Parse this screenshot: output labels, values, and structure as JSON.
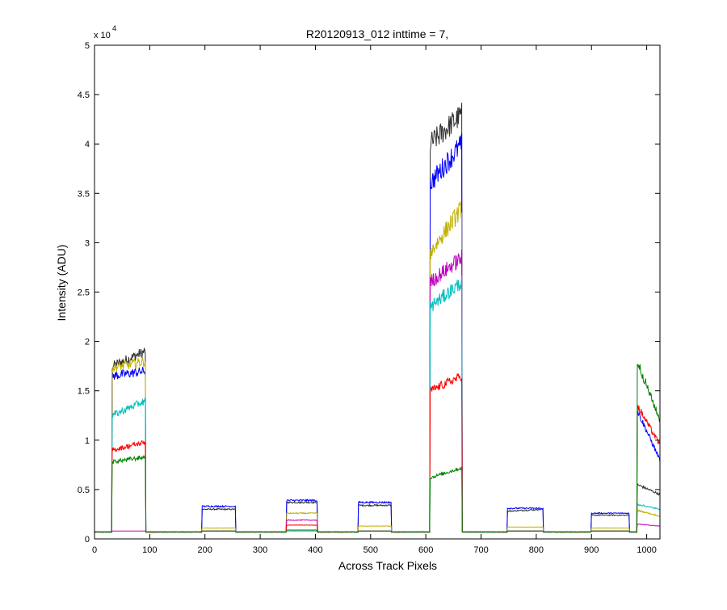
{
  "chart_data": {
    "type": "line",
    "title": "R20120913_012 inttime = 7,",
    "xlabel": "Across Track Pixels",
    "ylabel": "Intensity (ADU)",
    "y_exponent_label": "x 10",
    "y_exponent": "4",
    "xlim": [
      0,
      1024
    ],
    "ylim": [
      0,
      50000
    ],
    "xticks": [
      0,
      100,
      200,
      300,
      400,
      500,
      600,
      700,
      800,
      900,
      1000
    ],
    "yticks": [
      0,
      5000,
      10000,
      15000,
      20000,
      25000,
      30000,
      35000,
      40000,
      45000,
      50000
    ],
    "xtick_labels": [
      "0",
      "100",
      "200",
      "300",
      "400",
      "500",
      "600",
      "700",
      "800",
      "900",
      "1000"
    ],
    "ytick_labels": [
      "0",
      "0.5",
      "1",
      "1.5",
      "2",
      "2.5",
      "3",
      "3.5",
      "4",
      "4.5",
      "5"
    ],
    "grid": false,
    "legend": "none",
    "baseline": 700,
    "segments": [
      {
        "x0": 32,
        "x1": 92
      },
      {
        "x0": 195,
        "x1": 255
      },
      {
        "x0": 348,
        "x1": 403
      },
      {
        "x0": 478,
        "x1": 537
      },
      {
        "x0": 608,
        "x1": 665
      },
      {
        "x0": 748,
        "x1": 812
      },
      {
        "x0": 900,
        "x1": 968
      },
      {
        "x0": 983,
        "x1": 1024
      }
    ],
    "series": [
      {
        "color": "#303030",
        "levels": [
          {
            "start": 17500,
            "end": 19000
          },
          {
            "start": 3000,
            "end": 3000
          },
          {
            "start": 3700,
            "end": 3700
          },
          {
            "start": 3400,
            "end": 3400
          },
          {
            "start": 40000,
            "end": 43000
          },
          {
            "start": 2800,
            "end": 3000
          },
          {
            "start": 2400,
            "end": 2400
          },
          {
            "start": 5500,
            "end": 4500
          }
        ]
      },
      {
        "color": "#0000ff",
        "levels": [
          {
            "start": 16500,
            "end": 17000
          },
          {
            "start": 3300,
            "end": 3300
          },
          {
            "start": 3900,
            "end": 3900
          },
          {
            "start": 3700,
            "end": 3700
          },
          {
            "start": 36000,
            "end": 40000
          },
          {
            "start": 3100,
            "end": 3100
          },
          {
            "start": 2600,
            "end": 2600
          },
          {
            "start": 13000,
            "end": 8000
          }
        ]
      },
      {
        "color": "#c0b000",
        "levels": [
          {
            "start": 17300,
            "end": 18000
          },
          {
            "start": 1100,
            "end": 1100
          },
          {
            "start": 2600,
            "end": 2600
          },
          {
            "start": 1300,
            "end": 1300
          },
          {
            "start": 29000,
            "end": 33500
          },
          {
            "start": 1200,
            "end": 1200
          },
          {
            "start": 1100,
            "end": 1100
          },
          {
            "start": 2900,
            "end": 2300
          }
        ]
      },
      {
        "color": "#c000c0",
        "levels": [
          {
            "start": 800,
            "end": 800
          },
          {
            "start": 800,
            "end": 800
          },
          {
            "start": 1900,
            "end": 1900
          },
          {
            "start": 800,
            "end": 800
          },
          {
            "start": 26000,
            "end": 28500
          },
          {
            "start": 800,
            "end": 800
          },
          {
            "start": 800,
            "end": 800
          },
          {
            "start": 1500,
            "end": 1300
          }
        ]
      },
      {
        "color": "#00c0c0",
        "levels": [
          {
            "start": 12500,
            "end": 14000
          },
          {
            "start": 800,
            "end": 800
          },
          {
            "start": 800,
            "end": 800
          },
          {
            "start": 800,
            "end": 800
          },
          {
            "start": 23500,
            "end": 26000
          },
          {
            "start": 800,
            "end": 800
          },
          {
            "start": 800,
            "end": 800
          },
          {
            "start": 3500,
            "end": 3000
          }
        ]
      },
      {
        "color": "#ff0000",
        "levels": [
          {
            "start": 9000,
            "end": 9800
          },
          {
            "start": 800,
            "end": 800
          },
          {
            "start": 1400,
            "end": 1400
          },
          {
            "start": 800,
            "end": 800
          },
          {
            "start": 15000,
            "end": 16500
          },
          {
            "start": 800,
            "end": 800
          },
          {
            "start": 800,
            "end": 800
          },
          {
            "start": 13500,
            "end": 9500
          }
        ]
      },
      {
        "color": "#008000",
        "levels": [
          {
            "start": 7800,
            "end": 8300
          },
          {
            "start": 800,
            "end": 800
          },
          {
            "start": 900,
            "end": 900
          },
          {
            "start": 800,
            "end": 800
          },
          {
            "start": 6200,
            "end": 7200
          },
          {
            "start": 800,
            "end": 800
          },
          {
            "start": 800,
            "end": 800
          },
          {
            "start": 18000,
            "end": 12000
          }
        ]
      }
    ]
  }
}
